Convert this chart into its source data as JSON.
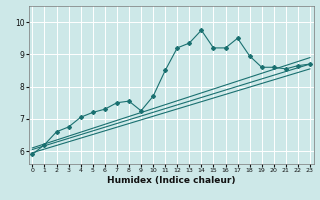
{
  "xlabel": "Humidex (Indice chaleur)",
  "bg_color": "#cde8e8",
  "grid_color": "#ffffff",
  "line_color": "#1a7070",
  "x_ticks": [
    0,
    1,
    2,
    3,
    4,
    5,
    6,
    7,
    8,
    9,
    10,
    11,
    12,
    13,
    14,
    15,
    16,
    17,
    18,
    19,
    20,
    21,
    22,
    23
  ],
  "y_ticks": [
    6,
    7,
    8,
    9,
    10
  ],
  "ylim": [
    5.6,
    10.5
  ],
  "xlim": [
    -0.3,
    23.3
  ],
  "line1_x": [
    0,
    1,
    2,
    3,
    4,
    5,
    6,
    7,
    8,
    9,
    10,
    11,
    12,
    13,
    14,
    15,
    16,
    17,
    18,
    19,
    20,
    21,
    22,
    23
  ],
  "line1_y": [
    5.9,
    6.2,
    6.6,
    6.75,
    7.05,
    7.2,
    7.3,
    7.5,
    7.55,
    7.25,
    7.7,
    8.5,
    9.2,
    9.35,
    9.75,
    9.2,
    9.2,
    9.5,
    8.95,
    8.6,
    8.6,
    8.55,
    8.65,
    8.7
  ],
  "line2_x": [
    0,
    23
  ],
  "line2_y": [
    6.1,
    8.9
  ],
  "line3_x": [
    0,
    23
  ],
  "line3_y": [
    6.05,
    8.7
  ],
  "line4_x": [
    0,
    23
  ],
  "line4_y": [
    5.95,
    8.55
  ]
}
